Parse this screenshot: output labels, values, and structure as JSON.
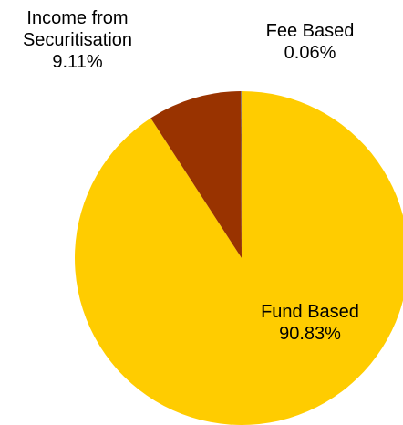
{
  "chart_data": {
    "type": "pie",
    "categories": [
      "Fund Based",
      "Income from Securitisation",
      "Fee Based"
    ],
    "values": [
      90.83,
      9.11,
      0.06
    ],
    "value_labels": [
      "90.83%",
      "9.11%",
      "0.06%"
    ],
    "colors": [
      "#FFCC00",
      "#993300",
      "#808080"
    ]
  }
}
